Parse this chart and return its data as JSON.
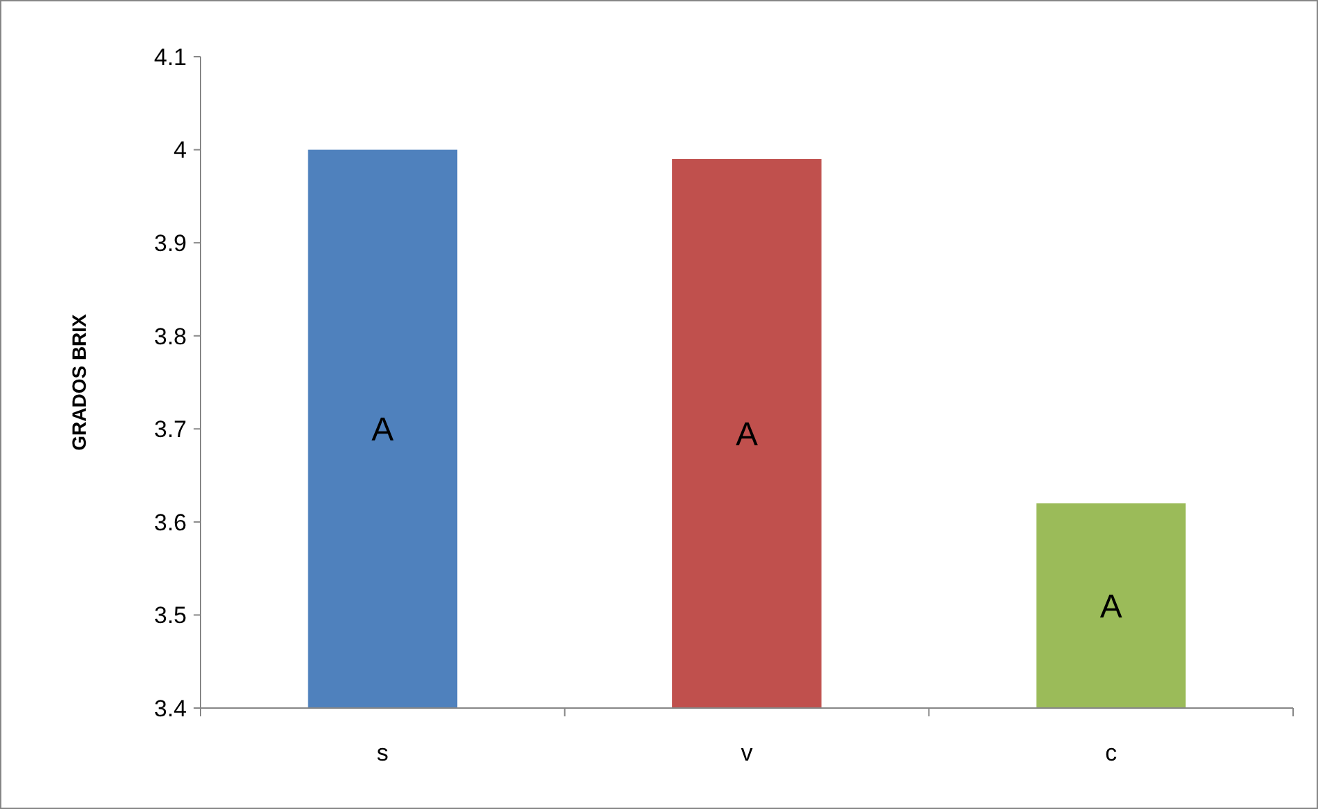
{
  "chart_data": {
    "type": "bar",
    "ylabel": "GRADOS BRIX",
    "categories": [
      "s",
      "v",
      "c"
    ],
    "values": [
      4.0,
      3.99,
      3.62
    ],
    "colors": [
      "#4f81bd",
      "#c0504d",
      "#9bbb59"
    ],
    "ylim": [
      3.4,
      4.1
    ],
    "yticks": [
      3.4,
      3.5,
      3.6,
      3.7,
      3.8,
      3.9,
      {
        "value": 4,
        "label": "4"
      },
      4.1
    ],
    "grid": false,
    "annotations": [
      "A",
      "A",
      "A"
    ]
  }
}
